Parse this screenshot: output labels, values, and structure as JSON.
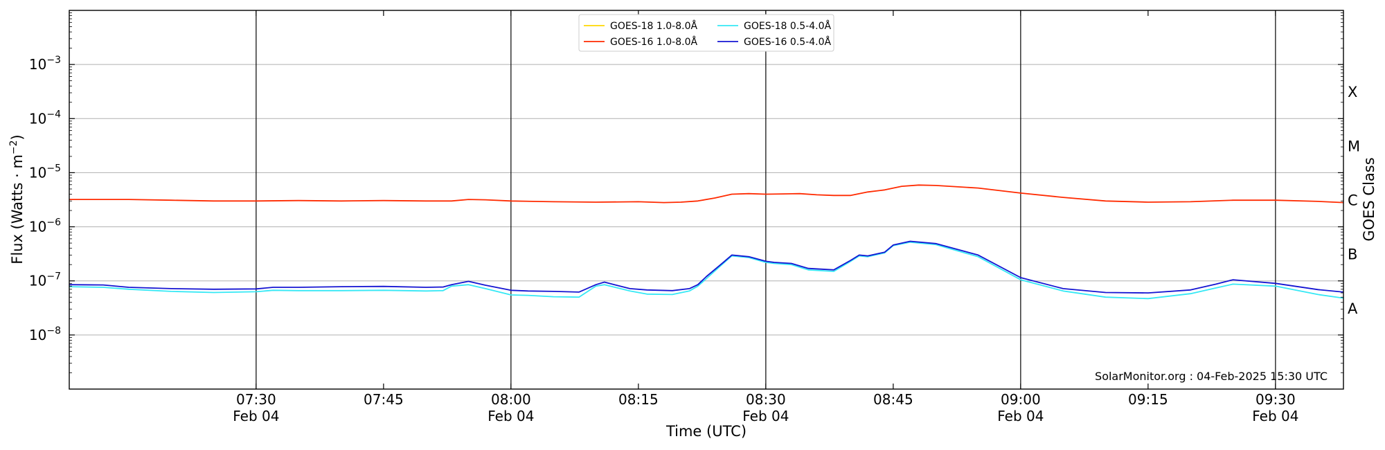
{
  "chart_data": {
    "type": "line",
    "title": "",
    "xlabel": "Time (UTC)",
    "ylabel": "Flux (Watts · m⁻²)",
    "ylabel_right": "GOES Class",
    "yscale": "log",
    "ylim": [
      1e-09,
      0.01
    ],
    "xlim": [
      "07:08",
      "09:38"
    ],
    "y_ticks": [
      {
        "base": "10",
        "exp": "−8",
        "value": 1e-08
      },
      {
        "base": "10",
        "exp": "−7",
        "value": 1e-07
      },
      {
        "base": "10",
        "exp": "−6",
        "value": 1e-06
      },
      {
        "base": "10",
        "exp": "−5",
        "value": 1e-05
      },
      {
        "base": "10",
        "exp": "−4",
        "value": 0.0001
      },
      {
        "base": "10",
        "exp": "−3",
        "value": 0.001
      }
    ],
    "x_ticks": [
      {
        "time": "07:30",
        "label": "07:30",
        "date": "Feb 04",
        "vline": true
      },
      {
        "time": "07:45",
        "label": "07:45",
        "date": "",
        "vline": false
      },
      {
        "time": "08:00",
        "label": "08:00",
        "date": "Feb 04",
        "vline": true
      },
      {
        "time": "08:15",
        "label": "08:15",
        "date": "",
        "vline": false
      },
      {
        "time": "08:30",
        "label": "08:30",
        "date": "Feb 04",
        "vline": true
      },
      {
        "time": "08:45",
        "label": "08:45",
        "date": "",
        "vline": false
      },
      {
        "time": "09:00",
        "label": "09:00",
        "date": "Feb 04",
        "vline": true
      },
      {
        "time": "09:15",
        "label": "09:15",
        "date": "",
        "vline": false
      },
      {
        "time": "09:30",
        "label": "09:30",
        "date": "Feb 04",
        "vline": true
      }
    ],
    "goes_classes": [
      {
        "label": "A",
        "low": 1e-08
      },
      {
        "label": "B",
        "low": 1e-07
      },
      {
        "label": "C",
        "low": 1e-06
      },
      {
        "label": "M",
        "low": 1e-05
      },
      {
        "label": "X",
        "low": 0.0001
      }
    ],
    "grid": "horizontal",
    "legend_position": "top-center",
    "credit": "SolarMonitor.org : 04-Feb-2025 15:30 UTC",
    "series": [
      {
        "name": "GOES-18 1.0-8.0Å",
        "color": "#ffd700",
        "x": [],
        "y": []
      },
      {
        "name": "GOES-16 1.0-8.0Å",
        "color": "#ff2a00",
        "x": [
          "07:08",
          "07:15",
          "07:20",
          "07:25",
          "07:30",
          "07:35",
          "07:40",
          "07:45",
          "07:50",
          "07:53",
          "07:55",
          "07:57",
          "08:00",
          "08:05",
          "08:10",
          "08:15",
          "08:18",
          "08:20",
          "08:22",
          "08:24",
          "08:26",
          "08:28",
          "08:30",
          "08:32",
          "08:34",
          "08:36",
          "08:38",
          "08:40",
          "08:42",
          "08:44",
          "08:46",
          "08:48",
          "08:50",
          "08:55",
          "09:00",
          "09:05",
          "09:10",
          "09:15",
          "09:20",
          "09:25",
          "09:30",
          "09:35",
          "09:38"
        ],
        "y": [
          3.2e-06,
          3.2e-06,
          3.1e-06,
          3e-06,
          3e-06,
          3.05e-06,
          3e-06,
          3.05e-06,
          3e-06,
          3e-06,
          3.2e-06,
          3.15e-06,
          3e-06,
          2.9e-06,
          2.85e-06,
          2.9e-06,
          2.8e-06,
          2.85e-06,
          3e-06,
          3.4e-06,
          4e-06,
          4.1e-06,
          4e-06,
          4.05e-06,
          4.1e-06,
          3.9e-06,
          3.8e-06,
          3.8e-06,
          4.4e-06,
          4.8e-06,
          5.6e-06,
          5.9e-06,
          5.8e-06,
          5.2e-06,
          4.2e-06,
          3.5e-06,
          3e-06,
          2.85e-06,
          2.9e-06,
          3.1e-06,
          3.1e-06,
          2.95e-06,
          2.8e-06
        ]
      },
      {
        "name": "GOES-18 0.5-4.0Å",
        "color": "#35e8f5",
        "x": [
          "07:08",
          "07:12",
          "07:15",
          "07:20",
          "07:25",
          "07:30",
          "07:32",
          "07:35",
          "07:40",
          "07:45",
          "07:50",
          "07:52",
          "07:53",
          "07:55",
          "07:57",
          "08:00",
          "08:02",
          "08:05",
          "08:08",
          "08:10",
          "08:11",
          "08:14",
          "08:16",
          "08:19",
          "08:21",
          "08:22",
          "08:23",
          "08:25",
          "08:26",
          "08:28",
          "08:30",
          "08:31",
          "08:33",
          "08:35",
          "08:38",
          "08:40",
          "08:41",
          "08:42",
          "08:44",
          "08:45",
          "08:47",
          "08:50",
          "08:55",
          "09:00",
          "09:05",
          "09:10",
          "09:15",
          "09:20",
          "09:23",
          "09:25",
          "09:30",
          "09:35",
          "09:38"
        ],
        "y": [
          7.8e-08,
          7.6e-08,
          7e-08,
          6.4e-08,
          6.1e-08,
          6.3e-08,
          6.7e-08,
          6.6e-08,
          6.6e-08,
          6.7e-08,
          6.5e-08,
          6.6e-08,
          8e-08,
          8.5e-08,
          7.2e-08,
          5.5e-08,
          5.4e-08,
          5.1e-08,
          5e-08,
          8e-08,
          8.5e-08,
          6.5e-08,
          5.7e-08,
          5.6e-08,
          6.5e-08,
          8e-08,
          1.1e-07,
          2.1e-07,
          2.9e-07,
          2.7e-07,
          2.2e-07,
          2.1e-07,
          2e-07,
          1.6e-07,
          1.5e-07,
          2.3e-07,
          2.9e-07,
          2.8e-07,
          3.3e-07,
          4.5e-07,
          5.2e-07,
          4.7e-07,
          2.8e-07,
          1.05e-07,
          6.5e-08,
          5e-08,
          4.7e-08,
          5.8e-08,
          7.4e-08,
          8.7e-08,
          8e-08,
          5.6e-08,
          4.8e-08
        ]
      },
      {
        "name": "GOES-16 0.5-4.0Å",
        "color": "#1414d2",
        "x": [
          "07:08",
          "07:12",
          "07:15",
          "07:20",
          "07:25",
          "07:30",
          "07:32",
          "07:35",
          "07:40",
          "07:45",
          "07:50",
          "07:52",
          "07:53",
          "07:55",
          "07:57",
          "08:00",
          "08:02",
          "08:05",
          "08:08",
          "08:10",
          "08:11",
          "08:14",
          "08:16",
          "08:19",
          "08:21",
          "08:22",
          "08:23",
          "08:25",
          "08:26",
          "08:28",
          "08:30",
          "08:31",
          "08:33",
          "08:35",
          "08:38",
          "08:40",
          "08:41",
          "08:42",
          "08:44",
          "08:45",
          "08:47",
          "08:50",
          "08:55",
          "09:00",
          "09:05",
          "09:10",
          "09:15",
          "09:20",
          "09:23",
          "09:25",
          "09:30",
          "09:35",
          "09:38"
        ],
        "y": [
          8.5e-08,
          8.4e-08,
          7.6e-08,
          7.2e-08,
          7e-08,
          7.1e-08,
          7.6e-08,
          7.6e-08,
          7.8e-08,
          7.9e-08,
          7.6e-08,
          7.7e-08,
          8.5e-08,
          9.8e-08,
          8.3e-08,
          6.7e-08,
          6.5e-08,
          6.4e-08,
          6.2e-08,
          8.5e-08,
          9.5e-08,
          7.2e-08,
          6.8e-08,
          6.6e-08,
          7.2e-08,
          8.5e-08,
          1.2e-07,
          2.2e-07,
          3e-07,
          2.8e-07,
          2.3e-07,
          2.2e-07,
          2.1e-07,
          1.7e-07,
          1.6e-07,
          2.4e-07,
          3e-07,
          2.9e-07,
          3.4e-07,
          4.6e-07,
          5.4e-07,
          4.9e-07,
          3e-07,
          1.15e-07,
          7.2e-08,
          6.1e-08,
          6e-08,
          6.8e-08,
          8.7e-08,
          1.05e-07,
          9e-08,
          6.9e-08,
          6.2e-08
        ]
      }
    ]
  }
}
